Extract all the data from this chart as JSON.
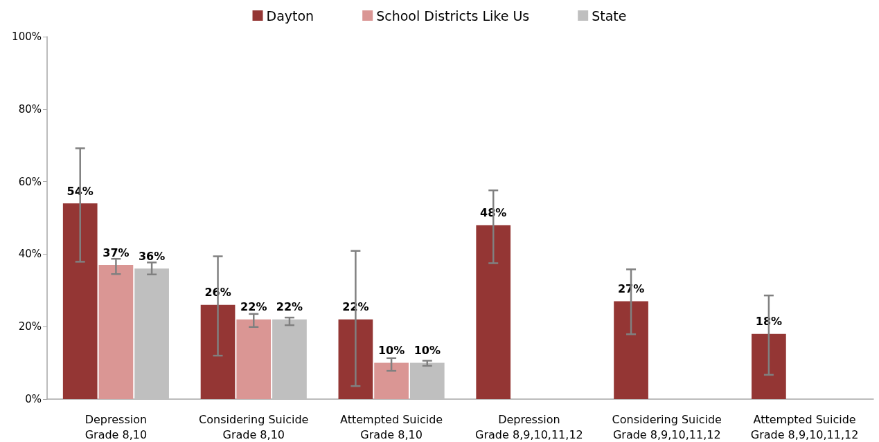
{
  "chart_data": {
    "type": "bar",
    "categories": [
      "Depression\nGrade 8,10",
      "Considering Suicide\nGrade 8,10",
      "Attempted Suicide\nGrade 8,10",
      "Depression\nGrade 8,9,10,11,12",
      "Considering Suicide\nGrade 8,9,10,11,12",
      "Attempted Suicide\nGrade 8,9,10,11,12"
    ],
    "series": [
      {
        "name": "Dayton",
        "color": "#943634",
        "values": [
          54,
          26,
          22,
          48,
          27,
          18
        ],
        "value_labels": [
          "54%",
          "26%",
          "22%",
          "48%",
          "27%",
          "18%"
        ],
        "errors": [
          [
            37.9,
            69.2
          ],
          [
            12.0,
            39.4
          ],
          [
            3.6,
            40.9
          ],
          [
            37.5,
            57.6
          ],
          [
            17.9,
            35.8
          ],
          [
            6.7,
            28.6
          ]
        ]
      },
      {
        "name": "School Districts Like Us",
        "color": "#da9694",
        "values": [
          37,
          22,
          10,
          null,
          null,
          null
        ],
        "value_labels": [
          "37%",
          "22%",
          "10%",
          null,
          null,
          null
        ],
        "errors": [
          [
            34.5,
            38.7
          ],
          [
            19.9,
            23.5
          ],
          [
            7.8,
            11.3
          ],
          null,
          null,
          null
        ]
      },
      {
        "name": "State",
        "color": "#bfbfbf",
        "values": [
          36,
          22,
          10,
          null,
          null,
          null
        ],
        "value_labels": [
          "36%",
          "22%",
          "10%",
          null,
          null,
          null
        ],
        "errors": [
          [
            34.4,
            37.7
          ],
          [
            20.4,
            22.5
          ],
          [
            9.2,
            10.6
          ],
          null,
          null,
          null
        ]
      }
    ],
    "ylim": [
      0,
      100
    ],
    "yticks": [
      {
        "value": 0,
        "label": "0%"
      },
      {
        "value": 20,
        "label": "20%"
      },
      {
        "value": 40,
        "label": "40%"
      },
      {
        "value": 60,
        "label": "60%"
      },
      {
        "value": 80,
        "label": "80%"
      },
      {
        "value": 100,
        "label": "100%"
      }
    ],
    "legend": "top",
    "grid": false
  }
}
